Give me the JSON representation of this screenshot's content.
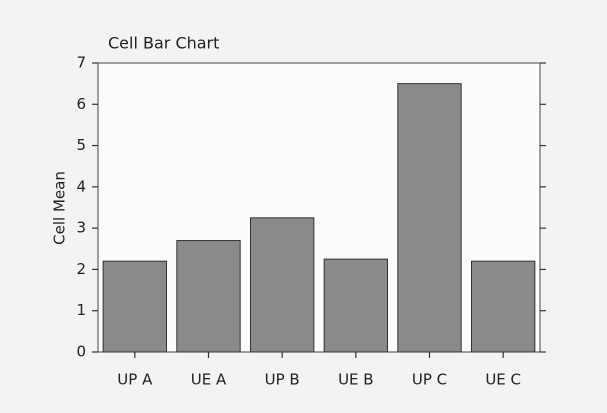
{
  "chart_data": {
    "type": "bar",
    "title": "Cell Bar Chart",
    "y_label": "Cell Mean",
    "categories": [
      "UP A",
      "UE A",
      "UP B",
      "UE B",
      "UP C",
      "UE C"
    ],
    "values": [
      2.2,
      2.7,
      3.25,
      2.25,
      6.5,
      2.2
    ],
    "color": "#8a8a8a",
    "ylim": [
      0,
      7
    ],
    "yticks": [
      0,
      1,
      2,
      3,
      4,
      5,
      6,
      7
    ],
    "grid": false
  }
}
